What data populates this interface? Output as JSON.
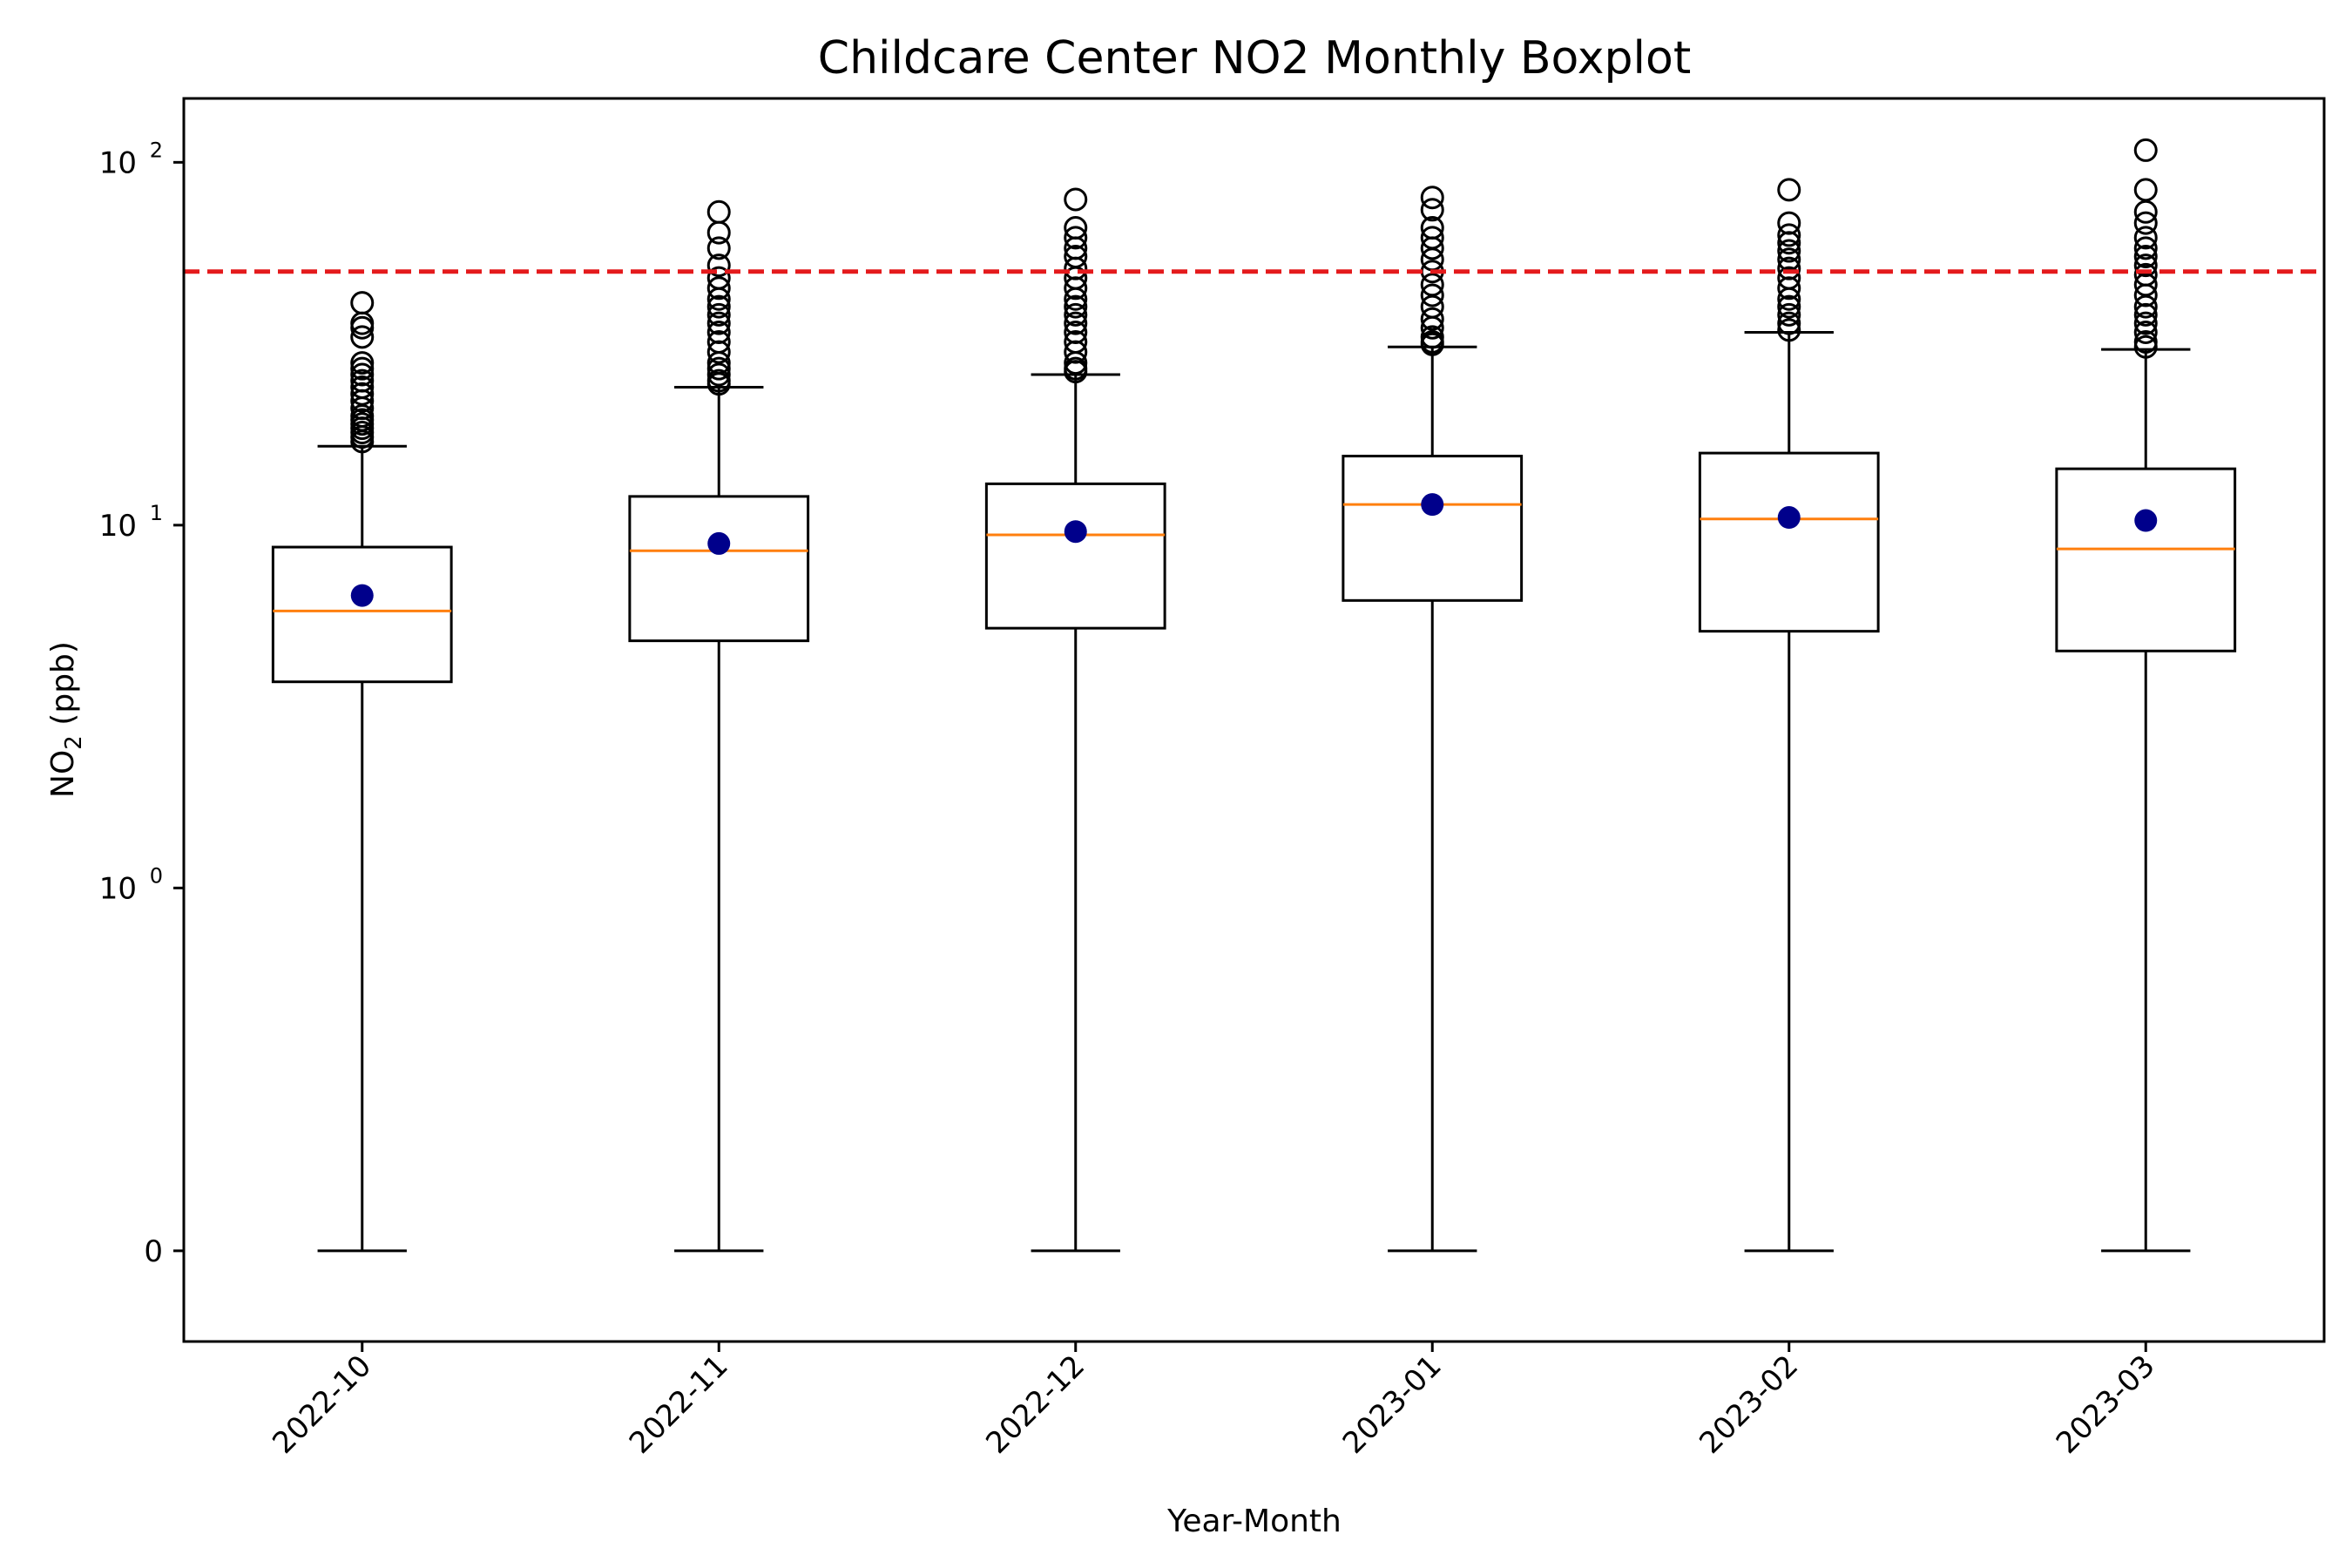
{
  "chart_data": {
    "type": "box",
    "title": "Childcare Center NO2 Monthly Boxplot",
    "xlabel": "Year-Month",
    "ylabel": {
      "base": "NO",
      "subscript": "2",
      "suffix": " (ppb)"
    },
    "y_scale": "symlog",
    "y_linthresh": 1,
    "ylim": [
      -0.25,
      150
    ],
    "y_ticks": [
      {
        "value": 0,
        "base": "0",
        "exponent": ""
      },
      {
        "value": 1,
        "base": "10",
        "exponent": "0"
      },
      {
        "value": 10,
        "base": "10",
        "exponent": "1"
      },
      {
        "value": 100,
        "base": "10",
        "exponent": "2"
      }
    ],
    "categories": [
      "2022-10",
      "2022-11",
      "2022-12",
      "2023-01",
      "2023-02",
      "2023-03"
    ],
    "boxes": [
      {
        "whisker_low": 0,
        "q1": 3.7,
        "median": 5.8,
        "q3": 8.7,
        "whisker_high": 16.5,
        "mean": 6.4,
        "outliers": [
          17,
          17.5,
          18,
          18.5,
          19,
          19.5,
          20,
          21,
          22,
          23,
          24,
          25,
          26,
          27,
          28,
          33,
          35,
          36,
          41
        ]
      },
      {
        "whisker_low": 0,
        "q1": 4.8,
        "median": 8.5,
        "q3": 12.0,
        "whisker_high": 24.0,
        "mean": 8.9,
        "outliers": [
          24.5,
          25,
          26,
          27,
          28,
          30,
          32,
          34,
          36,
          38,
          40,
          42,
          45,
          48,
          52,
          58,
          64,
          73
        ]
      },
      {
        "whisker_low": 0,
        "q1": 5.2,
        "median": 9.4,
        "q3": 13.0,
        "whisker_high": 26.0,
        "mean": 9.6,
        "outliers": [
          26.5,
          27,
          28,
          30,
          32,
          34,
          36,
          38,
          40,
          42,
          45,
          48,
          51,
          55,
          58,
          62,
          66,
          79
        ]
      },
      {
        "whisker_low": 0,
        "q1": 6.2,
        "median": 11.4,
        "q3": 15.5,
        "whisker_high": 31.0,
        "mean": 11.4,
        "outliers": [
          31.5,
          32,
          33,
          35,
          37,
          40,
          43,
          46,
          50,
          54,
          58,
          62,
          66,
          74,
          80
        ]
      },
      {
        "whisker_low": 0,
        "q1": 5.1,
        "median": 10.4,
        "q3": 15.8,
        "whisker_high": 34.0,
        "mean": 10.5,
        "outliers": [
          34.5,
          36,
          38,
          40,
          42,
          45,
          48,
          51,
          54,
          57,
          60,
          63,
          68,
          84
        ]
      },
      {
        "whisker_low": 0,
        "q1": 4.5,
        "median": 8.6,
        "q3": 14.3,
        "whisker_high": 30.5,
        "mean": 10.3,
        "outliers": [
          31,
          32,
          34,
          36,
          38,
          40,
          43,
          46,
          49,
          52,
          55,
          58,
          62,
          68,
          73,
          84,
          108
        ]
      }
    ],
    "reference_line": {
      "value": 50,
      "color": "#e41a1c",
      "style": "dashed"
    },
    "colors": {
      "box": "#000000",
      "median": "#ff7f0e",
      "mean": "#00008b",
      "outlier": "#000000"
    },
    "grid": false,
    "legend": "none"
  }
}
